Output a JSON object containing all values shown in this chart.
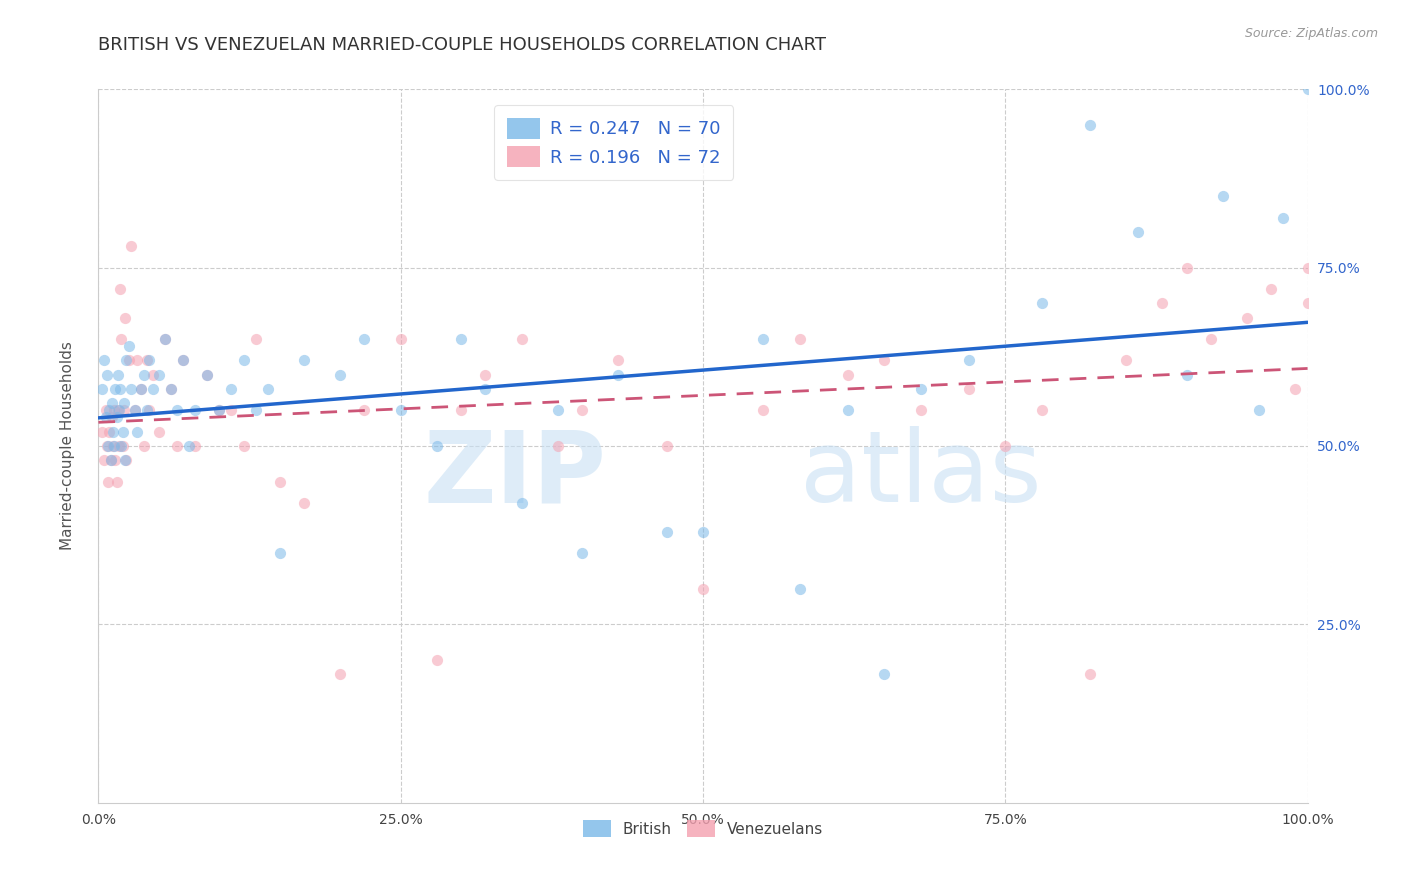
{
  "title": "BRITISH VS VENEZUELAN MARRIED-COUPLE HOUSEHOLDS CORRELATION CHART",
  "source": "Source: ZipAtlas.com",
  "ylabel": "Married-couple Households",
  "watermark_zip": "ZIP",
  "watermark_atlas": "atlas",
  "british_R": 0.247,
  "british_N": 70,
  "venezuelan_R": 0.196,
  "venezuelan_N": 72,
  "british_color": "#7ab8e8",
  "venezuelan_color": "#f4a0b0",
  "british_line_color": "#2266cc",
  "venezuelan_line_color": "#cc5577",
  "xlim": [
    0.0,
    1.0
  ],
  "ylim": [
    0.0,
    1.0
  ],
  "xtick_labels": [
    "0.0%",
    "",
    "25.0%",
    "",
    "50.0%",
    "",
    "75.0%",
    "",
    "100.0%"
  ],
  "xtick_positions": [
    0.0,
    0.125,
    0.25,
    0.375,
    0.5,
    0.625,
    0.75,
    0.875,
    1.0
  ],
  "ytick_labels": [
    "25.0%",
    "50.0%",
    "75.0%",
    "100.0%"
  ],
  "ytick_positions": [
    0.25,
    0.5,
    0.75,
    1.0
  ],
  "title_fontsize": 13,
  "axis_label_fontsize": 11,
  "tick_fontsize": 10,
  "legend_fontsize": 13,
  "marker_size": 65,
  "marker_alpha": 0.55,
  "grid_color": "#cccccc",
  "background_color": "#ffffff",
  "british_x": [
    0.003,
    0.005,
    0.006,
    0.007,
    0.008,
    0.009,
    0.01,
    0.011,
    0.012,
    0.013,
    0.014,
    0.015,
    0.016,
    0.017,
    0.018,
    0.019,
    0.02,
    0.021,
    0.022,
    0.023,
    0.025,
    0.027,
    0.03,
    0.032,
    0.035,
    0.038,
    0.04,
    0.042,
    0.045,
    0.05,
    0.055,
    0.06,
    0.065,
    0.07,
    0.075,
    0.08,
    0.09,
    0.1,
    0.11,
    0.12,
    0.13,
    0.14,
    0.15,
    0.17,
    0.2,
    0.22,
    0.25,
    0.28,
    0.3,
    0.32,
    0.35,
    0.38,
    0.4,
    0.43,
    0.47,
    0.5,
    0.55,
    0.58,
    0.62,
    0.65,
    0.68,
    0.72,
    0.78,
    0.82,
    0.86,
    0.9,
    0.93,
    0.96,
    0.98,
    1.0
  ],
  "british_y": [
    0.58,
    0.62,
    0.54,
    0.6,
    0.5,
    0.55,
    0.48,
    0.56,
    0.52,
    0.5,
    0.58,
    0.54,
    0.6,
    0.55,
    0.58,
    0.5,
    0.52,
    0.56,
    0.48,
    0.62,
    0.64,
    0.58,
    0.55,
    0.52,
    0.58,
    0.6,
    0.55,
    0.62,
    0.58,
    0.6,
    0.65,
    0.58,
    0.55,
    0.62,
    0.5,
    0.55,
    0.6,
    0.55,
    0.58,
    0.62,
    0.55,
    0.58,
    0.35,
    0.62,
    0.6,
    0.65,
    0.55,
    0.5,
    0.65,
    0.58,
    0.42,
    0.55,
    0.35,
    0.6,
    0.38,
    0.38,
    0.65,
    0.3,
    0.55,
    0.18,
    0.58,
    0.62,
    0.7,
    0.95,
    0.8,
    0.6,
    0.85,
    0.55,
    0.82,
    1.0
  ],
  "venezuelan_x": [
    0.003,
    0.005,
    0.006,
    0.007,
    0.008,
    0.009,
    0.01,
    0.011,
    0.012,
    0.013,
    0.014,
    0.015,
    0.016,
    0.017,
    0.018,
    0.019,
    0.02,
    0.021,
    0.022,
    0.023,
    0.025,
    0.027,
    0.03,
    0.032,
    0.035,
    0.038,
    0.04,
    0.042,
    0.045,
    0.05,
    0.055,
    0.06,
    0.065,
    0.07,
    0.08,
    0.09,
    0.1,
    0.11,
    0.12,
    0.13,
    0.15,
    0.17,
    0.2,
    0.22,
    0.25,
    0.28,
    0.3,
    0.32,
    0.35,
    0.38,
    0.4,
    0.43,
    0.47,
    0.5,
    0.55,
    0.58,
    0.62,
    0.65,
    0.68,
    0.72,
    0.75,
    0.78,
    0.82,
    0.85,
    0.88,
    0.9,
    0.92,
    0.95,
    0.97,
    0.99,
    1.0,
    1.0
  ],
  "venezuelan_y": [
    0.52,
    0.48,
    0.55,
    0.5,
    0.45,
    0.52,
    0.48,
    0.54,
    0.5,
    0.55,
    0.48,
    0.45,
    0.55,
    0.5,
    0.72,
    0.65,
    0.5,
    0.55,
    0.68,
    0.48,
    0.62,
    0.78,
    0.55,
    0.62,
    0.58,
    0.5,
    0.62,
    0.55,
    0.6,
    0.52,
    0.65,
    0.58,
    0.5,
    0.62,
    0.5,
    0.6,
    0.55,
    0.55,
    0.5,
    0.65,
    0.45,
    0.42,
    0.18,
    0.55,
    0.65,
    0.2,
    0.55,
    0.6,
    0.65,
    0.5,
    0.55,
    0.62,
    0.5,
    0.3,
    0.55,
    0.65,
    0.6,
    0.62,
    0.55,
    0.58,
    0.5,
    0.55,
    0.18,
    0.62,
    0.7,
    0.75,
    0.65,
    0.68,
    0.72,
    0.58,
    0.75,
    0.7
  ]
}
